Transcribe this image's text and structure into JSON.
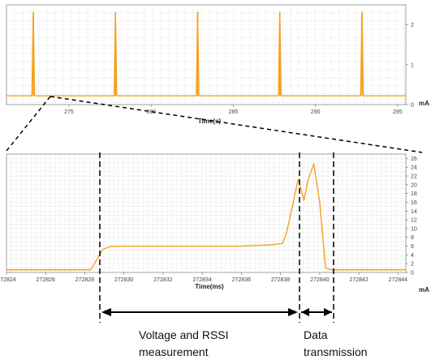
{
  "chart_data": [
    {
      "type": "line",
      "xlabel": "Time(s)",
      "unit": "mA",
      "xlim": [
        271.2,
        295.5
      ],
      "ylim": [
        0,
        2.5
      ],
      "x_ticks": [
        "275",
        "280",
        "285",
        "290",
        "295"
      ],
      "y_ticks": [
        "0",
        "1",
        "2"
      ],
      "grid": true,
      "series": [
        {
          "color": "#f5a01e",
          "baseline": 0.22,
          "spike_times": [
            272.83,
            277.83,
            282.83,
            287.83,
            292.83
          ],
          "spike_height": 2.32
        }
      ]
    },
    {
      "type": "line",
      "xlabel": "Time(ms)",
      "unit": "mA",
      "xlim": [
        272824,
        272844.4
      ],
      "ylim": [
        0,
        27
      ],
      "x_ticks": [
        "272824",
        "272826",
        "272828",
        "272830",
        "272832",
        "272834",
        "272836",
        "272838",
        "272840",
        "272842",
        "272844"
      ],
      "y_ticks": [
        "0",
        "2",
        "4",
        "6",
        "8",
        "10",
        "12",
        "14",
        "16",
        "18",
        "20",
        "22",
        "24",
        "26"
      ],
      "grid": true,
      "series": [
        {
          "color": "#f5a01e",
          "x": [
            272824,
            272828.3,
            272828.6,
            272828.9,
            272829.3,
            272830,
            272833,
            272836,
            272837.5,
            272838.1,
            272838.3,
            272838.6,
            272838.9,
            272839.2,
            272839.4,
            272839.7,
            272840.0,
            272840.3,
            272840.6,
            272844.4
          ],
          "y": [
            0.6,
            0.6,
            2.8,
            5.2,
            5.9,
            6.0,
            6.0,
            6.0,
            6.3,
            6.6,
            9.0,
            15.0,
            21.2,
            16.5,
            21.0,
            24.8,
            16.0,
            1.0,
            0.6,
            0.6
          ]
        }
      ]
    }
  ],
  "annotations": {
    "phase1_label_line1": "Voltage and RSSI",
    "phase1_label_line2": "measurement",
    "phase2_label_line1": "Data",
    "phase2_label_line2": "transmission"
  }
}
